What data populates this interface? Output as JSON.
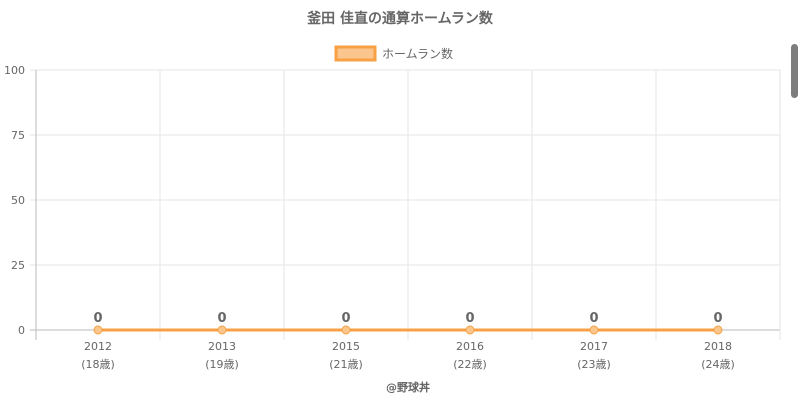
{
  "chart_data": {
    "type": "line",
    "title": "釜田 佳直の通算ホームラン数",
    "categories": [
      "2012",
      "2013",
      "2015",
      "2016",
      "2017",
      "2018"
    ],
    "category_sublabels": [
      "(18歳)",
      "(19歳)",
      "(21歳)",
      "(22歳)",
      "(23歳)",
      "(24歳)"
    ],
    "series": [
      {
        "name": "ホームラン数",
        "values": [
          0,
          0,
          0,
          0,
          0,
          0
        ],
        "color": "#f7a044",
        "fill": "#fbc68e"
      }
    ],
    "data_labels": [
      "0",
      "0",
      "0",
      "0",
      "0",
      "0"
    ],
    "ylim": [
      0,
      100
    ],
    "yticks": [
      0,
      25,
      50,
      75,
      100
    ],
    "grid": true,
    "legend_position": "top-center",
    "credit": "@野球丼"
  }
}
